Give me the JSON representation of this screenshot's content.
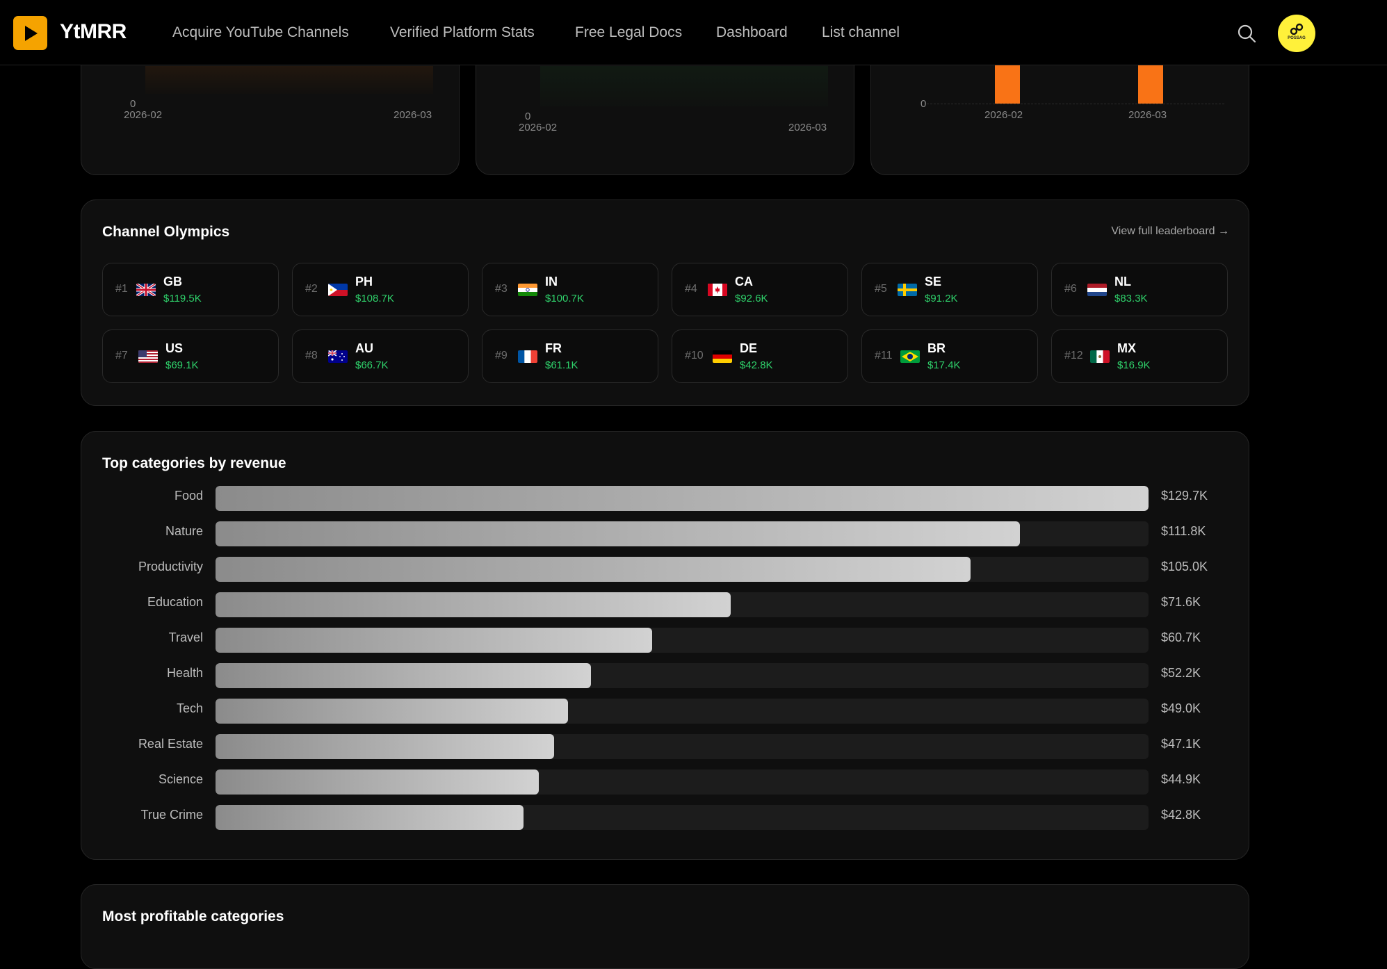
{
  "brand": {
    "name": "YtMRR"
  },
  "nav": {
    "links": [
      "Acquire YouTube Channels",
      "Verified Platform Stats",
      "Free Legal Docs",
      "Dashboard",
      "List channel"
    ],
    "avatar_text": "POSSAG"
  },
  "mini_charts": [
    {
      "y_zero": "0",
      "x_start": "2026-02",
      "x_end": "2026-03"
    },
    {
      "y_zero": "0",
      "x_start": "2026-02",
      "x_end": "2026-03"
    },
    {
      "y_zero": "0",
      "x_start": "2026-02",
      "x_end": "2026-03"
    }
  ],
  "olympics": {
    "title": "Channel Olympics",
    "leaderboard_link": "View full leaderboard →",
    "entries": [
      {
        "rank": "#1",
        "code": "GB",
        "amount": "$119.5K"
      },
      {
        "rank": "#2",
        "code": "PH",
        "amount": "$108.7K"
      },
      {
        "rank": "#3",
        "code": "IN",
        "amount": "$100.7K"
      },
      {
        "rank": "#4",
        "code": "CA",
        "amount": "$92.6K"
      },
      {
        "rank": "#5",
        "code": "SE",
        "amount": "$91.2K"
      },
      {
        "rank": "#6",
        "code": "NL",
        "amount": "$83.3K"
      },
      {
        "rank": "#7",
        "code": "US",
        "amount": "$69.1K"
      },
      {
        "rank": "#8",
        "code": "AU",
        "amount": "$66.7K"
      },
      {
        "rank": "#9",
        "code": "FR",
        "amount": "$61.1K"
      },
      {
        "rank": "#10",
        "code": "DE",
        "amount": "$42.8K"
      },
      {
        "rank": "#11",
        "code": "BR",
        "amount": "$17.4K"
      },
      {
        "rank": "#12",
        "code": "MX",
        "amount": "$16.9K"
      }
    ]
  },
  "categories": {
    "title": "Top categories by revenue",
    "items": [
      {
        "name": "Food",
        "value": "$129.7K"
      },
      {
        "name": "Nature",
        "value": "$111.8K"
      },
      {
        "name": "Productivity",
        "value": "$105.0K"
      },
      {
        "name": "Education",
        "value": "$71.6K"
      },
      {
        "name": "Travel",
        "value": "$60.7K"
      },
      {
        "name": "Health",
        "value": "$52.2K"
      },
      {
        "name": "Tech",
        "value": "$49.0K"
      },
      {
        "name": "Real Estate",
        "value": "$47.1K"
      },
      {
        "name": "Science",
        "value": "$44.9K"
      },
      {
        "name": "True Crime",
        "value": "$42.8K"
      }
    ]
  },
  "chart_data": {
    "type": "bar",
    "categories": [
      "Food",
      "Nature",
      "Productivity",
      "Education",
      "Travel",
      "Health",
      "Tech",
      "Real Estate",
      "Science",
      "True Crime"
    ],
    "values": [
      129.7,
      111.8,
      105.0,
      71.6,
      60.7,
      52.2,
      49.0,
      47.1,
      44.9,
      42.8
    ],
    "title": "Top categories by revenue",
    "xlim": [
      0,
      129.7
    ]
  },
  "profitable": {
    "title": "Most profitable categories"
  }
}
